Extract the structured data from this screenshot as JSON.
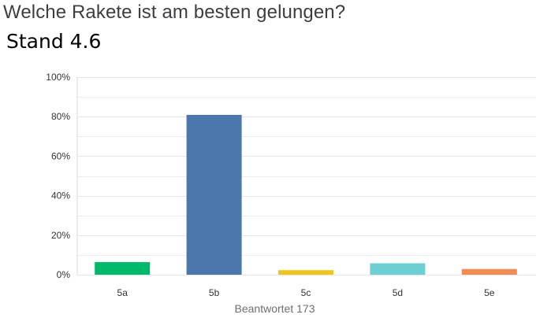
{
  "header": {
    "title": "Welche Rakete ist am besten gelungen?",
    "subtitle": "Stand 4.6"
  },
  "footer": {
    "answered_text": "Beantwortet 173"
  },
  "chart_data": {
    "type": "bar",
    "categories": [
      "5a",
      "5b",
      "5c",
      "5d",
      "5e"
    ],
    "values": [
      6.4,
      80.9,
      2.3,
      5.8,
      2.9
    ],
    "colors": [
      "#00b96b",
      "#4b77ad",
      "#f0c419",
      "#6ccfd2",
      "#f08c55"
    ],
    "ylim": [
      0,
      100
    ],
    "yticks": [
      0,
      20,
      40,
      60,
      80,
      100
    ],
    "ytick_labels": [
      "0%",
      "20%",
      "40%",
      "60%",
      "80%",
      "100%"
    ],
    "grid": true
  }
}
